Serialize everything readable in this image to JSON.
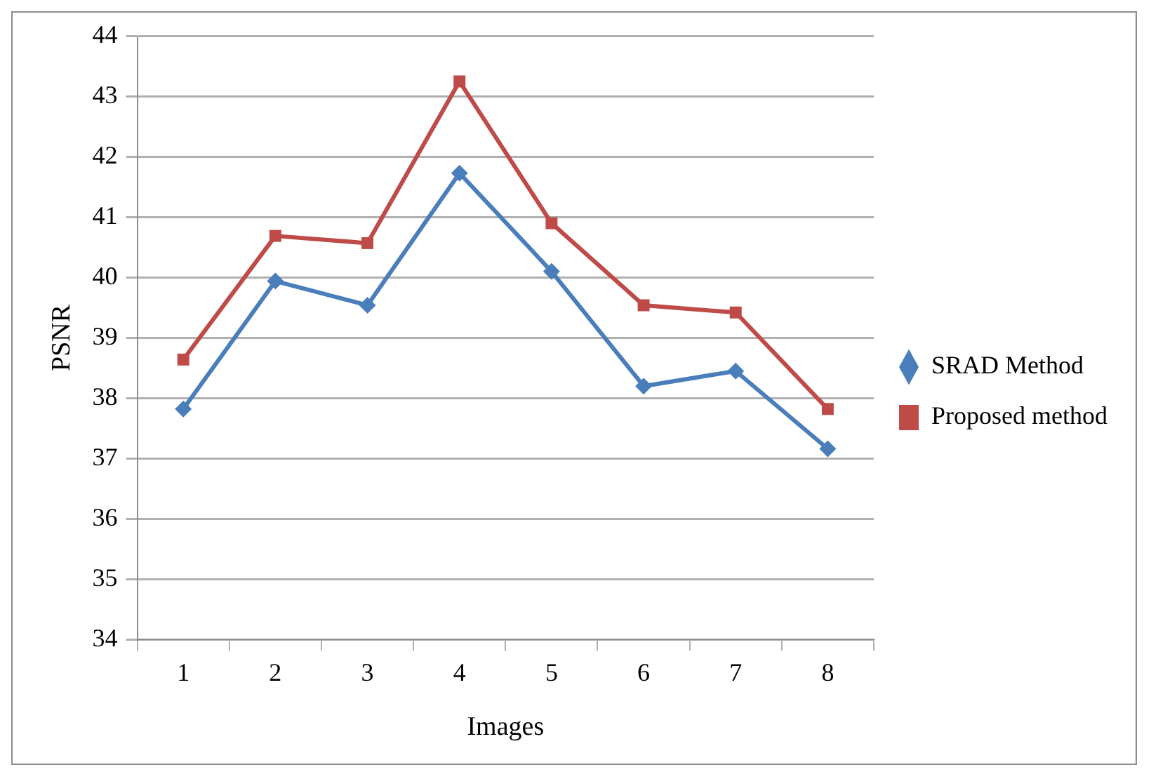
{
  "chart_data": {
    "type": "line",
    "xlabel": "Images",
    "ylabel": "PSNR",
    "categories": [
      "1",
      "2",
      "3",
      "4",
      "5",
      "6",
      "7",
      "8"
    ],
    "series": [
      {
        "name": "SRAD Method",
        "color": "#4a7ebb",
        "marker": "diamond",
        "values": [
          37.82,
          39.94,
          39.54,
          41.73,
          40.1,
          38.2,
          38.45,
          37.16
        ]
      },
      {
        "name": "Proposed method",
        "color": "#be4b48",
        "marker": "square",
        "values": [
          38.64,
          40.69,
          40.57,
          43.25,
          40.9,
          39.54,
          39.42,
          37.82
        ]
      }
    ],
    "ylim": [
      34,
      44
    ],
    "yticks": [
      34,
      35,
      36,
      37,
      38,
      39,
      40,
      41,
      42,
      43,
      44
    ],
    "grid": "y",
    "legend": "right"
  }
}
